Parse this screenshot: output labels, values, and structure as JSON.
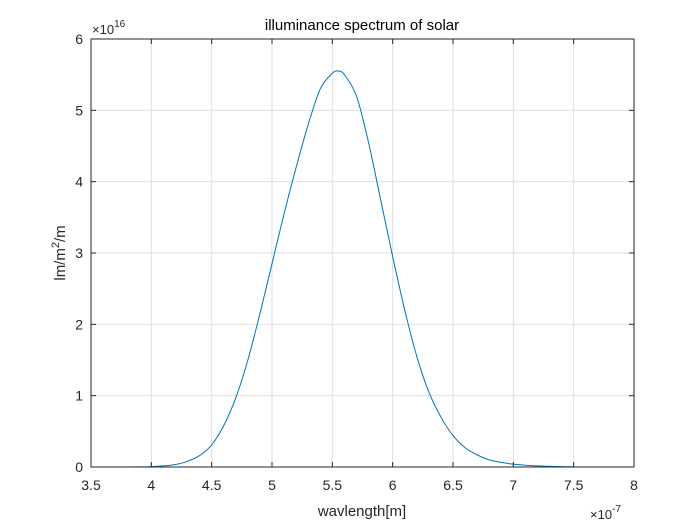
{
  "chart_data": {
    "type": "line",
    "title": "illuminance spectrum of solar",
    "xlabel": "wavlength[m]",
    "ylabel": "lm/m2/m",
    "ylabel_base": "lm/m",
    "ylabel_sup": "2",
    "ylabel_tail": "/m",
    "x_exponent": "×10",
    "x_exponent_power": "-7",
    "y_exponent": "×10",
    "y_exponent_power": "16",
    "xlim": [
      3.5,
      8
    ],
    "ylim": [
      0,
      6
    ],
    "xticks": [
      "3.5",
      "4",
      "4.5",
      "5",
      "5.5",
      "6",
      "6.5",
      "7",
      "7.5",
      "8"
    ],
    "yticks": [
      "0",
      "1",
      "2",
      "3",
      "4",
      "5",
      "6"
    ],
    "grid": true,
    "line_color": "#0072bd",
    "series": [
      {
        "x": [
          3.8,
          3.9,
          4.0,
          4.1,
          4.2,
          4.3,
          4.4,
          4.5,
          4.6,
          4.7,
          4.8,
          4.9,
          5.0,
          5.1,
          5.2,
          5.3,
          5.4,
          5.5,
          5.55,
          5.6,
          5.7,
          5.8,
          5.9,
          6.0,
          6.1,
          6.2,
          6.3,
          6.4,
          6.5,
          6.6,
          6.7,
          6.8,
          6.9,
          7.0,
          7.1,
          7.2,
          7.3,
          7.4,
          7.5
        ],
        "y": [
          0.0,
          0.002,
          0.006,
          0.015,
          0.035,
          0.08,
          0.16,
          0.31,
          0.58,
          0.97,
          1.5,
          2.15,
          2.85,
          3.55,
          4.2,
          4.8,
          5.3,
          5.52,
          5.55,
          5.5,
          5.2,
          4.55,
          3.75,
          2.95,
          2.2,
          1.55,
          1.05,
          0.7,
          0.44,
          0.27,
          0.17,
          0.1,
          0.065,
          0.04,
          0.025,
          0.015,
          0.009,
          0.005,
          0.003
        ]
      }
    ]
  }
}
